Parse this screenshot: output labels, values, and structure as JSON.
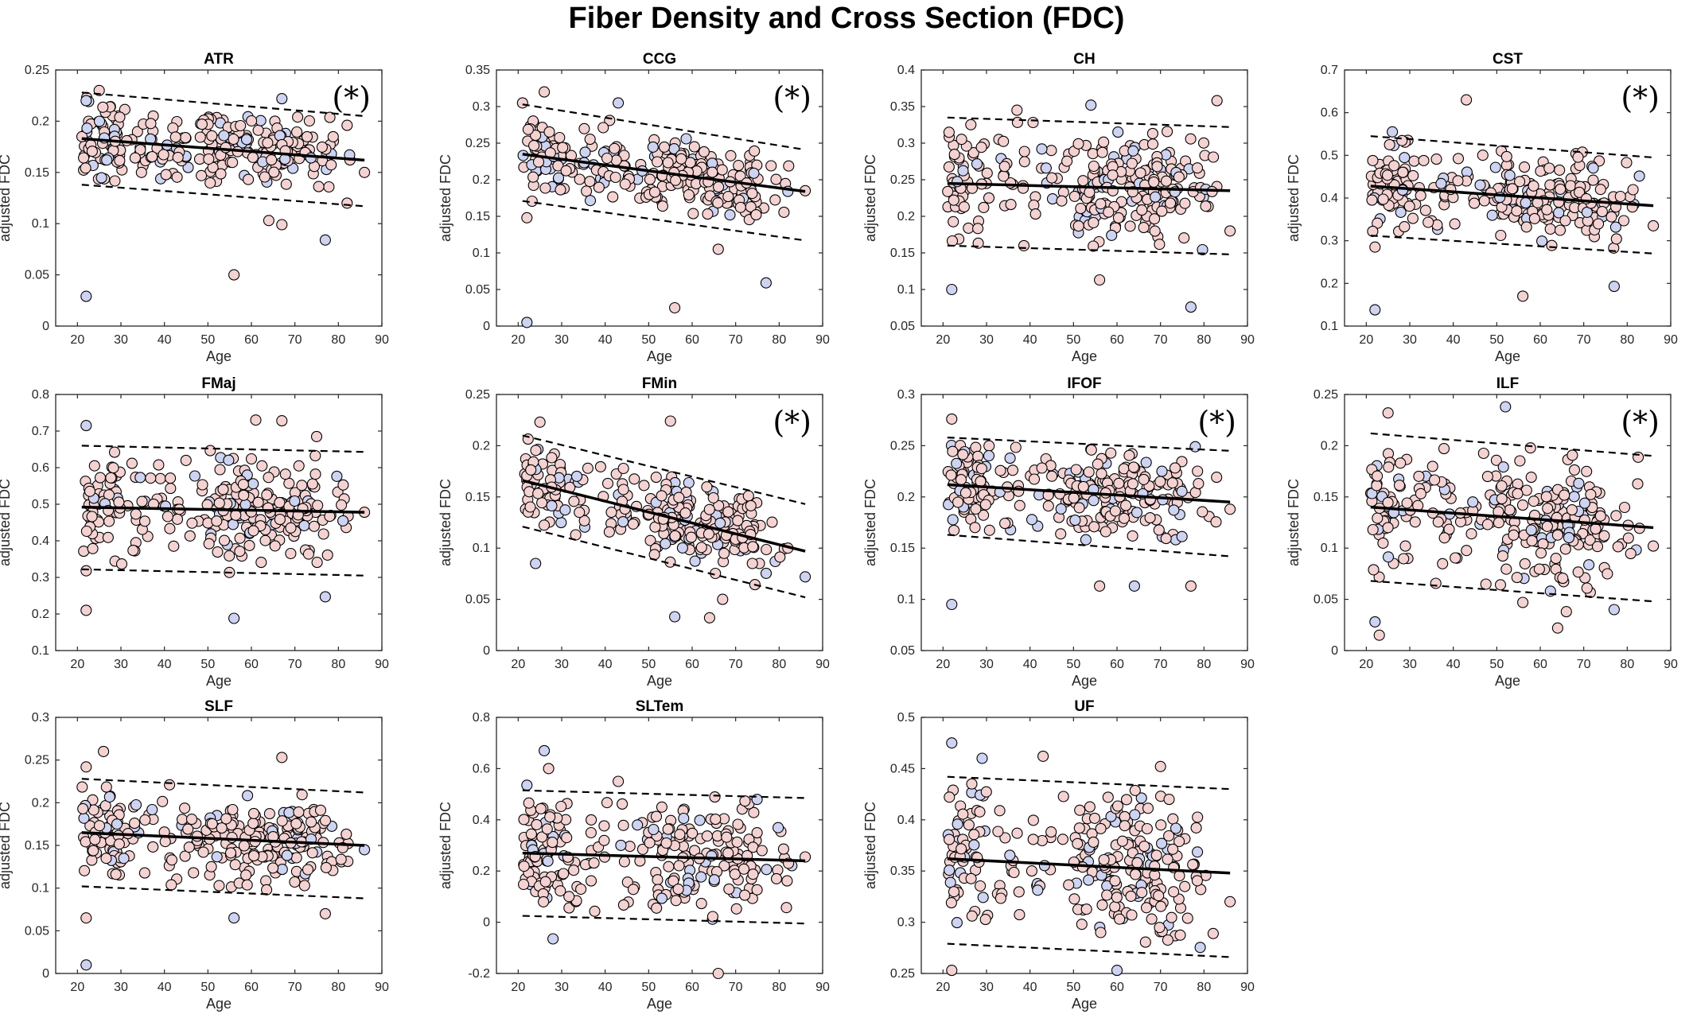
{
  "title": "Fiber Density and Cross Section (FDC)",
  "colors": {
    "female_fill": "#f4d2d2",
    "male_fill": "#cdd3f1",
    "marker_edge": "#000000",
    "fit_line": "#000000",
    "axes": "#262626"
  },
  "chart_data": [
    {
      "type": "scatter",
      "title": "ATR",
      "xlabel": "Age",
      "ylabel": "adjusted FDC",
      "xlim": [
        15,
        90
      ],
      "ylim": [
        0,
        0.25
      ],
      "xticks": [
        "20",
        "30",
        "40",
        "50",
        "60",
        "70",
        "80",
        "90"
      ],
      "yticks": [
        "0",
        "0.05",
        "0.1",
        "0.15",
        "0.2",
        "0.25"
      ],
      "grid": false,
      "significance": "(*)",
      "fit": {
        "x": [
          21,
          86
        ],
        "y": [
          0.183,
          0.162
        ]
      },
      "ci_upper": {
        "x": [
          21,
          86
        ],
        "y": [
          0.228,
          0.205
        ]
      },
      "ci_lower": {
        "x": [
          21,
          86
        ],
        "y": [
          0.138,
          0.117
        ]
      },
      "outliers": [
        [
          22,
          0.029
        ],
        [
          25,
          0.23
        ],
        [
          56,
          0.05
        ],
        [
          67,
          0.222
        ],
        [
          64,
          0.103
        ],
        [
          67,
          0.099
        ],
        [
          77,
          0.084
        ],
        [
          82,
          0.12
        ],
        [
          86,
          0.15
        ],
        [
          22,
          0.22
        ],
        [
          82,
          0.196
        ]
      ],
      "cloud": {
        "ymean": 0.175,
        "ysd": 0.018,
        "seed": 1
      }
    },
    {
      "type": "scatter",
      "title": "CCG",
      "xlabel": "Age",
      "ylabel": "adjusted FDC",
      "xlim": [
        15,
        90
      ],
      "ylim": [
        0,
        0.35
      ],
      "xticks": [
        "20",
        "30",
        "40",
        "50",
        "60",
        "70",
        "80",
        "90"
      ],
      "yticks": [
        "0",
        "0.05",
        "0.1",
        "0.15",
        "0.2",
        "0.25",
        "0.3",
        "0.35"
      ],
      "grid": false,
      "significance": "(*)",
      "fit": {
        "x": [
          21,
          86
        ],
        "y": [
          0.235,
          0.184
        ]
      },
      "ci_upper": {
        "x": [
          21,
          86
        ],
        "y": [
          0.303,
          0.241
        ]
      },
      "ci_lower": {
        "x": [
          21,
          86
        ],
        "y": [
          0.171,
          0.117
        ]
      },
      "outliers": [
        [
          22,
          0.005
        ],
        [
          21,
          0.305
        ],
        [
          26,
          0.32
        ],
        [
          43,
          0.305
        ],
        [
          56,
          0.025
        ],
        [
          66,
          0.105
        ],
        [
          77,
          0.059
        ],
        [
          22,
          0.148
        ],
        [
          86,
          0.185
        ],
        [
          82,
          0.184
        ]
      ],
      "cloud": {
        "ymean": 0.21,
        "ysd": 0.025,
        "seed": 2
      }
    },
    {
      "type": "scatter",
      "title": "CH",
      "xlabel": "Age",
      "ylabel": "adjusted FDC",
      "xlim": [
        15,
        90
      ],
      "ylim": [
        0.05,
        0.4
      ],
      "xticks": [
        "20",
        "30",
        "40",
        "50",
        "60",
        "70",
        "80",
        "90"
      ],
      "yticks": [
        "0.05",
        "0.1",
        "0.15",
        "0.2",
        "0.25",
        "0.3",
        "0.35",
        "0.4"
      ],
      "grid": false,
      "significance": "",
      "fit": {
        "x": [
          21,
          86
        ],
        "y": [
          0.245,
          0.235
        ]
      },
      "ci_upper": {
        "x": [
          21,
          86
        ],
        "y": [
          0.335,
          0.322
        ]
      },
      "ci_lower": {
        "x": [
          21,
          86
        ],
        "y": [
          0.16,
          0.148
        ]
      },
      "outliers": [
        [
          22,
          0.1
        ],
        [
          37,
          0.345
        ],
        [
          56,
          0.113
        ],
        [
          77,
          0.076
        ],
        [
          83,
          0.358
        ],
        [
          86,
          0.18
        ],
        [
          54,
          0.352
        ]
      ],
      "cloud": {
        "ymean": 0.24,
        "ysd": 0.04,
        "seed": 3
      }
    },
    {
      "type": "scatter",
      "title": "CST",
      "xlabel": "Age",
      "ylabel": "adjusted FDC",
      "xlim": [
        15,
        90
      ],
      "ylim": [
        0.1,
        0.7
      ],
      "xticks": [
        "20",
        "30",
        "40",
        "50",
        "60",
        "70",
        "80",
        "90"
      ],
      "yticks": [
        "0.1",
        "0.2",
        "0.3",
        "0.4",
        "0.5",
        "0.6",
        "0.7"
      ],
      "grid": false,
      "significance": "(*)",
      "fit": {
        "x": [
          21,
          86
        ],
        "y": [
          0.428,
          0.382
        ]
      },
      "ci_upper": {
        "x": [
          21,
          86
        ],
        "y": [
          0.545,
          0.495
        ]
      },
      "ci_lower": {
        "x": [
          21,
          86
        ],
        "y": [
          0.312,
          0.27
        ]
      },
      "outliers": [
        [
          22,
          0.138
        ],
        [
          43,
          0.63
        ],
        [
          56,
          0.17
        ],
        [
          77,
          0.193
        ],
        [
          86,
          0.335
        ],
        [
          22,
          0.285
        ],
        [
          26,
          0.555
        ]
      ],
      "cloud": {
        "ymean": 0.41,
        "ysd": 0.05,
        "seed": 4
      }
    },
    {
      "type": "scatter",
      "title": "FMaj",
      "xlabel": "Age",
      "ylabel": "adjusted FDC",
      "xlim": [
        15,
        90
      ],
      "ylim": [
        0.1,
        0.8
      ],
      "xticks": [
        "20",
        "30",
        "40",
        "50",
        "60",
        "70",
        "80",
        "90"
      ],
      "yticks": [
        "0.1",
        "0.2",
        "0.3",
        "0.4",
        "0.5",
        "0.6",
        "0.7",
        "0.8"
      ],
      "grid": false,
      "significance": "",
      "fit": {
        "x": [
          21,
          86
        ],
        "y": [
          0.492,
          0.478
        ]
      },
      "ci_upper": {
        "x": [
          21,
          86
        ],
        "y": [
          0.66,
          0.643
        ]
      },
      "ci_lower": {
        "x": [
          21,
          86
        ],
        "y": [
          0.322,
          0.305
        ]
      },
      "outliers": [
        [
          22,
          0.715
        ],
        [
          22,
          0.21
        ],
        [
          22,
          0.318
        ],
        [
          56,
          0.188
        ],
        [
          61,
          0.73
        ],
        [
          67,
          0.728
        ],
        [
          77,
          0.247
        ],
        [
          86,
          0.478
        ],
        [
          75,
          0.685
        ]
      ],
      "cloud": {
        "ymean": 0.485,
        "ysd": 0.07,
        "seed": 5
      }
    },
    {
      "type": "scatter",
      "title": "FMin",
      "xlabel": "Age",
      "ylabel": "adjusted FDC",
      "xlim": [
        15,
        90
      ],
      "ylim": [
        0,
        0.25
      ],
      "xticks": [
        "20",
        "30",
        "40",
        "50",
        "60",
        "70",
        "80",
        "90"
      ],
      "yticks": [
        "0",
        "0.05",
        "0.1",
        "0.15",
        "0.2",
        "0.25"
      ],
      "grid": false,
      "significance": "(*)",
      "fit": {
        "x": [
          21,
          86
        ],
        "y": [
          0.166,
          0.097
        ]
      },
      "ci_upper": {
        "x": [
          21,
          86
        ],
        "y": [
          0.21,
          0.143
        ]
      },
      "ci_lower": {
        "x": [
          21,
          86
        ],
        "y": [
          0.121,
          0.052
        ]
      },
      "outliers": [
        [
          24,
          0.085
        ],
        [
          25,
          0.223
        ],
        [
          55,
          0.224
        ],
        [
          56,
          0.033
        ],
        [
          64,
          0.032
        ],
        [
          67,
          0.05
        ],
        [
          86,
          0.072
        ],
        [
          82,
          0.1
        ]
      ],
      "cloud": {
        "ymean": 0.135,
        "ysd": 0.022,
        "seed": 6,
        "slope": -0.00105
      }
    },
    {
      "type": "scatter",
      "title": "IFOF",
      "xlabel": "Age",
      "ylabel": "adjusted FDC",
      "xlim": [
        15,
        90
      ],
      "ylim": [
        0.05,
        0.3
      ],
      "xticks": [
        "20",
        "30",
        "40",
        "50",
        "60",
        "70",
        "80",
        "90"
      ],
      "yticks": [
        "0.05",
        "0.1",
        "0.15",
        "0.2",
        "0.25",
        "0.3"
      ],
      "grid": false,
      "significance": "(*)",
      "fit": {
        "x": [
          21,
          86
        ],
        "y": [
          0.212,
          0.195
        ]
      },
      "ci_upper": {
        "x": [
          21,
          86
        ],
        "y": [
          0.258,
          0.245
        ]
      },
      "ci_lower": {
        "x": [
          21,
          86
        ],
        "y": [
          0.163,
          0.142
        ]
      },
      "outliers": [
        [
          22,
          0.095
        ],
        [
          22,
          0.276
        ],
        [
          56,
          0.113
        ],
        [
          64,
          0.113
        ],
        [
          77,
          0.113
        ],
        [
          86,
          0.188
        ],
        [
          78,
          0.249
        ]
      ],
      "cloud": {
        "ymean": 0.205,
        "ysd": 0.02,
        "seed": 7
      }
    },
    {
      "type": "scatter",
      "title": "ILF",
      "xlabel": "Age",
      "ylabel": "adjusted FDC",
      "xlim": [
        15,
        90
      ],
      "ylim": [
        0,
        0.25
      ],
      "xticks": [
        "20",
        "30",
        "40",
        "50",
        "60",
        "70",
        "80",
        "90"
      ],
      "yticks": [
        "0",
        "0.05",
        "0.1",
        "0.15",
        "0.2",
        "0.25"
      ],
      "grid": false,
      "significance": "(*)",
      "fit": {
        "x": [
          21,
          86
        ],
        "y": [
          0.14,
          0.12
        ]
      },
      "ci_upper": {
        "x": [
          21,
          86
        ],
        "y": [
          0.212,
          0.19
        ]
      },
      "ci_lower": {
        "x": [
          21,
          86
        ],
        "y": [
          0.068,
          0.048
        ]
      },
      "outliers": [
        [
          22,
          0.028
        ],
        [
          23,
          0.015
        ],
        [
          25,
          0.232
        ],
        [
          52,
          0.238
        ],
        [
          56,
          0.047
        ],
        [
          64,
          0.022
        ],
        [
          77,
          0.04
        ],
        [
          86,
          0.102
        ],
        [
          66,
          0.038
        ]
      ],
      "cloud": {
        "ymean": 0.13,
        "ysd": 0.03,
        "seed": 8
      }
    },
    {
      "type": "scatter",
      "title": "SLF",
      "xlabel": "Age",
      "ylabel": "adjusted FDC",
      "xlim": [
        15,
        90
      ],
      "ylim": [
        0,
        0.3
      ],
      "xticks": [
        "20",
        "30",
        "40",
        "50",
        "60",
        "70",
        "80",
        "90"
      ],
      "yticks": [
        "0",
        "0.05",
        "0.1",
        "0.15",
        "0.2",
        "0.25",
        "0.3"
      ],
      "grid": false,
      "significance": "",
      "fit": {
        "x": [
          21,
          86
        ],
        "y": [
          0.165,
          0.15
        ]
      },
      "ci_upper": {
        "x": [
          21,
          86
        ],
        "y": [
          0.228,
          0.212
        ]
      },
      "ci_lower": {
        "x": [
          21,
          86
        ],
        "y": [
          0.102,
          0.088
        ]
      },
      "outliers": [
        [
          22,
          0.01
        ],
        [
          22,
          0.065
        ],
        [
          26,
          0.26
        ],
        [
          56,
          0.065
        ],
        [
          67,
          0.253
        ],
        [
          77,
          0.07
        ],
        [
          86,
          0.145
        ],
        [
          22,
          0.242
        ]
      ],
      "cloud": {
        "ymean": 0.158,
        "ysd": 0.025,
        "seed": 9
      }
    },
    {
      "type": "scatter",
      "title": "SLTem",
      "xlabel": "Age",
      "ylabel": "adjusted FDC",
      "xlim": [
        15,
        90
      ],
      "ylim": [
        -0.2,
        0.8
      ],
      "xticks": [
        "20",
        "30",
        "40",
        "50",
        "60",
        "70",
        "80",
        "90"
      ],
      "yticks": [
        "-0.2",
        "0",
        "0.2",
        "0.4",
        "0.6",
        "0.8"
      ],
      "grid": false,
      "significance": "",
      "fit": {
        "x": [
          21,
          86
        ],
        "y": [
          0.27,
          0.24
        ]
      },
      "ci_upper": {
        "x": [
          21,
          86
        ],
        "y": [
          0.515,
          0.485
        ]
      },
      "ci_lower": {
        "x": [
          21,
          86
        ],
        "y": [
          0.025,
          -0.005
        ]
      },
      "outliers": [
        [
          26,
          0.67
        ],
        [
          27,
          0.6
        ],
        [
          66,
          -0.2
        ],
        [
          28,
          -0.065
        ],
        [
          86,
          0.255
        ],
        [
          43,
          0.55
        ],
        [
          22,
          0.535
        ]
      ],
      "cloud": {
        "ymean": 0.255,
        "ysd": 0.11,
        "seed": 10
      }
    },
    {
      "type": "scatter",
      "title": "UF",
      "xlabel": "Age",
      "ylabel": "adjusted FDC",
      "xlim": [
        15,
        90
      ],
      "ylim": [
        0.25,
        0.5
      ],
      "xticks": [
        "20",
        "30",
        "40",
        "50",
        "60",
        "70",
        "80",
        "90"
      ],
      "yticks": [
        "0.25",
        "0.3",
        "0.35",
        "0.4",
        "0.45",
        "0.5"
      ],
      "grid": false,
      "significance": "",
      "fit": {
        "x": [
          21,
          86
        ],
        "y": [
          0.362,
          0.348
        ]
      },
      "ci_upper": {
        "x": [
          21,
          86
        ],
        "y": [
          0.442,
          0.43
        ]
      },
      "ci_lower": {
        "x": [
          21,
          86
        ],
        "y": [
          0.279,
          0.266
        ]
      },
      "outliers": [
        [
          22,
          0.475
        ],
        [
          22,
          0.253
        ],
        [
          43,
          0.462
        ],
        [
          60,
          0.253
        ],
        [
          70,
          0.452
        ],
        [
          86,
          0.32
        ],
        [
          29,
          0.46
        ]
      ],
      "cloud": {
        "ymean": 0.355,
        "ysd": 0.038,
        "seed": 11
      }
    }
  ]
}
